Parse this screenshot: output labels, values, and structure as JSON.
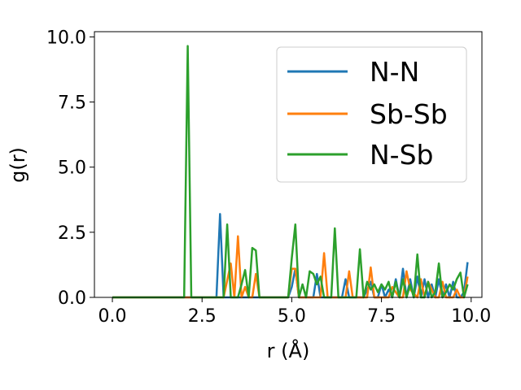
{
  "chart_data": {
    "type": "line",
    "xlabel": "r (Å)",
    "ylabel": "g(r)",
    "xlim": [
      -0.5,
      10.3
    ],
    "ylim": [
      0,
      10.2
    ],
    "xticks": [
      0.0,
      2.5,
      5.0,
      7.5,
      10.0
    ],
    "xtick_labels": [
      "0.0",
      "2.5",
      "5.0",
      "7.5",
      "10.0"
    ],
    "yticks": [
      0.0,
      2.5,
      5.0,
      7.5,
      10.0
    ],
    "ytick_labels": [
      "0.0",
      "2.5",
      "5.0",
      "7.5",
      "10.0"
    ],
    "grid": false,
    "legend_position": "upper-right",
    "series": [
      {
        "name": "N-N",
        "color": "#1f77b4",
        "x": [
          0.0,
          2.9,
          3.0,
          3.1,
          3.2,
          4.9,
          5.0,
          5.1,
          5.2,
          5.6,
          5.7,
          5.8,
          5.9,
          6.4,
          6.5,
          6.6,
          6.7,
          7.0,
          7.1,
          7.2,
          7.3,
          7.4,
          7.5,
          7.6,
          7.7,
          7.8,
          7.9,
          8.0,
          8.1,
          8.2,
          8.3,
          8.4,
          8.5,
          8.6,
          8.7,
          8.8,
          8.9,
          9.0,
          9.1,
          9.2,
          9.3,
          9.4,
          9.5,
          9.6,
          9.7,
          9.8,
          9.9
        ],
        "y": [
          0.0,
          0.0,
          3.2,
          0.0,
          0.0,
          0.0,
          0.4,
          1.1,
          0.0,
          0.0,
          0.9,
          0.0,
          0.0,
          0.0,
          0.7,
          0.0,
          0.0,
          0.0,
          0.3,
          0.6,
          0.0,
          0.0,
          0.5,
          0.0,
          0.3,
          0.0,
          0.7,
          0.0,
          1.1,
          0.0,
          0.7,
          0.0,
          0.8,
          0.0,
          0.7,
          0.0,
          0.5,
          0.0,
          0.7,
          0.0,
          0.5,
          0.0,
          0.6,
          0.0,
          0.0,
          0.2,
          1.35
        ]
      },
      {
        "name": "Sb-Sb",
        "color": "#ff7f0e",
        "x": [
          0.0,
          3.1,
          3.3,
          3.4,
          3.5,
          3.6,
          3.7,
          3.8,
          3.9,
          4.0,
          4.1,
          4.9,
          5.0,
          5.1,
          5.2,
          5.3,
          5.4,
          5.8,
          5.9,
          6.0,
          6.1,
          6.5,
          6.6,
          6.7,
          6.8,
          7.1,
          7.2,
          7.3,
          7.5,
          7.6,
          7.7,
          7.8,
          8.0,
          8.1,
          8.2,
          8.3,
          8.5,
          8.6,
          8.7,
          8.8,
          9.0,
          9.1,
          9.2,
          9.3,
          9.5,
          9.6,
          9.7,
          9.8,
          9.9
        ],
        "y": [
          0.0,
          0.0,
          1.3,
          0.0,
          2.35,
          0.0,
          0.4,
          0.0,
          0.0,
          0.9,
          0.0,
          0.0,
          1.1,
          1.1,
          0.0,
          0.0,
          0.0,
          0.0,
          1.7,
          0.0,
          0.0,
          0.0,
          1.0,
          0.0,
          0.0,
          0.0,
          1.15,
          0.0,
          0.0,
          0.0,
          0.0,
          0.4,
          0.0,
          0.0,
          1.0,
          0.3,
          0.0,
          0.7,
          0.0,
          0.6,
          0.0,
          0.0,
          0.6,
          0.0,
          0.0,
          0.3,
          0.0,
          0.0,
          0.8
        ]
      },
      {
        "name": "N-Sb",
        "color": "#2ca02c",
        "x": [
          0.0,
          2.0,
          2.1,
          2.2,
          3.1,
          3.2,
          3.3,
          3.5,
          3.6,
          3.7,
          3.8,
          3.9,
          4.0,
          4.1,
          4.9,
          5.0,
          5.1,
          5.2,
          5.3,
          5.4,
          5.5,
          5.6,
          5.7,
          5.8,
          5.9,
          6.0,
          6.1,
          6.2,
          6.3,
          6.6,
          6.7,
          6.8,
          6.9,
          7.0,
          7.1,
          7.2,
          7.3,
          7.4,
          7.5,
          7.6,
          7.7,
          7.8,
          7.9,
          8.0,
          8.1,
          8.2,
          8.3,
          8.4,
          8.5,
          8.6,
          8.7,
          8.8,
          8.9,
          9.0,
          9.1,
          9.2,
          9.3,
          9.4,
          9.5,
          9.6,
          9.7,
          9.8,
          9.9
        ],
        "y": [
          0.0,
          0.0,
          9.65,
          0.0,
          0.0,
          2.8,
          0.0,
          0.0,
          0.5,
          1.05,
          0.0,
          1.9,
          1.8,
          0.0,
          0.0,
          1.5,
          2.8,
          0.0,
          0.5,
          0.0,
          1.0,
          0.9,
          0.5,
          0.8,
          0.0,
          0.0,
          0.0,
          2.65,
          0.0,
          0.0,
          0.0,
          0.0,
          1.85,
          0.0,
          0.6,
          0.3,
          0.5,
          0.2,
          0.5,
          0.3,
          0.6,
          0.0,
          0.6,
          0.0,
          0.7,
          0.0,
          0.5,
          0.0,
          1.65,
          0.0,
          0.0,
          0.6,
          0.0,
          0.2,
          1.3,
          0.0,
          0.2,
          0.5,
          0.3,
          0.7,
          0.95,
          0.0,
          0.5
        ]
      }
    ]
  }
}
